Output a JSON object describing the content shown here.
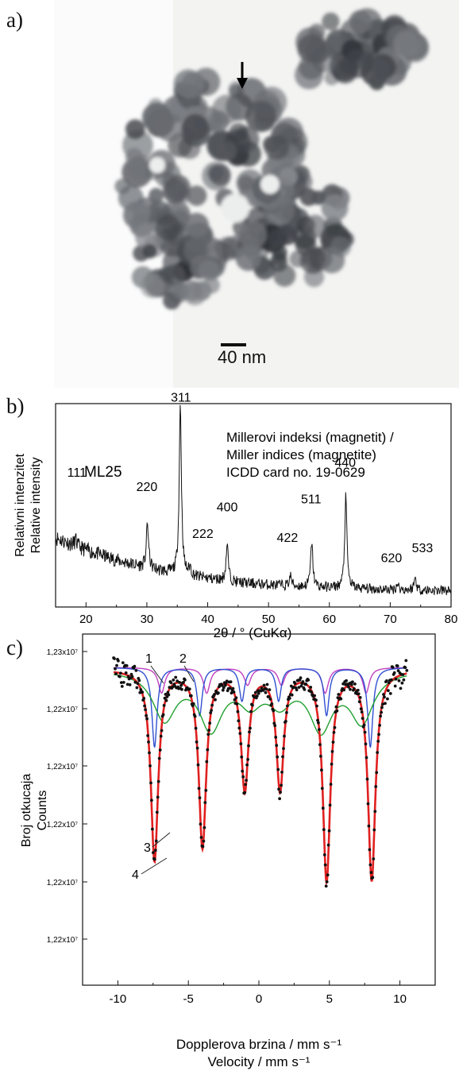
{
  "panels": {
    "a": {
      "label": "a)",
      "scale_bar_label": "40 nm"
    },
    "b": {
      "label": "b)"
    },
    "c": {
      "label": "c)"
    }
  },
  "chart_data": [
    {
      "panel": "b",
      "type": "line",
      "sample_label": "ML25",
      "annotation_lines": [
        "Millerovi indeksi (magnetit) /",
        "Miller indices (magnetite)",
        "ICDD card no. 19-0629"
      ],
      "ylabel": [
        "Relativni intenzitet",
        "Relative intensity"
      ],
      "xlabel": "2θ / ° (CuKα)",
      "xlim": [
        15,
        80
      ],
      "xticks": [
        20,
        30,
        40,
        50,
        60,
        70,
        80
      ],
      "ylim": [
        0,
        100
      ],
      "background": [
        [
          15,
          34
        ],
        [
          20,
          28
        ],
        [
          25,
          23
        ],
        [
          30,
          19
        ],
        [
          35,
          16
        ],
        [
          40,
          14
        ],
        [
          45,
          12
        ],
        [
          50,
          11
        ],
        [
          55,
          10
        ],
        [
          60,
          9.5
        ],
        [
          70,
          8.5
        ],
        [
          80,
          8
        ]
      ],
      "peaks": [
        {
          "label": "111",
          "x": 18.3,
          "height": 3,
          "label_x": 18.5,
          "label_y": 64
        },
        {
          "label": "220",
          "x": 30.1,
          "height": 22,
          "label_x": 30.0,
          "label_y": 57
        },
        {
          "label": "311",
          "x": 35.5,
          "height": 84,
          "label_x": 35.6,
          "label_y": 101
        },
        {
          "label": "222",
          "x": 37.1,
          "height": 4,
          "label_x": 39.2,
          "label_y": 34
        },
        {
          "label": "400",
          "x": 43.2,
          "height": 18,
          "label_x": 43.2,
          "label_y": 47
        },
        {
          "label": "422",
          "x": 53.6,
          "height": 5,
          "label_x": 53.1,
          "label_y": 32
        },
        {
          "label": "511",
          "x": 57.1,
          "height": 22,
          "label_x": 57.0,
          "label_y": 51
        },
        {
          "label": "440",
          "x": 62.7,
          "height": 45,
          "label_x": 62.6,
          "label_y": 69
        },
        {
          "label": "620",
          "x": 71.2,
          "height": 3,
          "label_x": 70.2,
          "label_y": 22
        },
        {
          "label": "533",
          "x": 74.1,
          "height": 6,
          "label_x": 75.3,
          "label_y": 27
        }
      ]
    },
    {
      "panel": "c",
      "type": "scatter",
      "ylabel": [
        "Broj otkucaja",
        "Counts"
      ],
      "xlabel": [
        "Dopplerova brzina / mm s⁻¹",
        "Velocity / mm s⁻¹"
      ],
      "xlim": [
        -12.5,
        12.5
      ],
      "xticks": [
        -10,
        -5,
        0,
        5,
        10
      ],
      "ytick_labels": [
        "1,23x10⁷",
        "1,22x10⁷",
        "1,22x10⁷",
        "1,22x10⁷",
        "1,22x10⁷",
        "1,22x10⁷"
      ],
      "series": [
        {
          "name": "1",
          "color": "#c040c0",
          "lines": [
            -6.9,
            -3.7,
            -0.8,
            1.6,
            4.7,
            7.6
          ]
        },
        {
          "name": "2",
          "color": "#3050d0",
          "lines": [
            -7.4,
            -4.2,
            -1.2,
            1.4,
            4.8,
            7.9
          ]
        },
        {
          "name": "3",
          "color": "#20a030",
          "lines": [
            -6.7,
            -3.4,
            -0.6,
            1.5,
            4.4,
            7.3
          ]
        },
        {
          "name": "4",
          "color": "#e02020",
          "lines": [
            -7.4,
            -4.0,
            -1.0,
            1.5,
            4.8,
            8.0
          ]
        }
      ],
      "data_color": "#111111"
    }
  ]
}
